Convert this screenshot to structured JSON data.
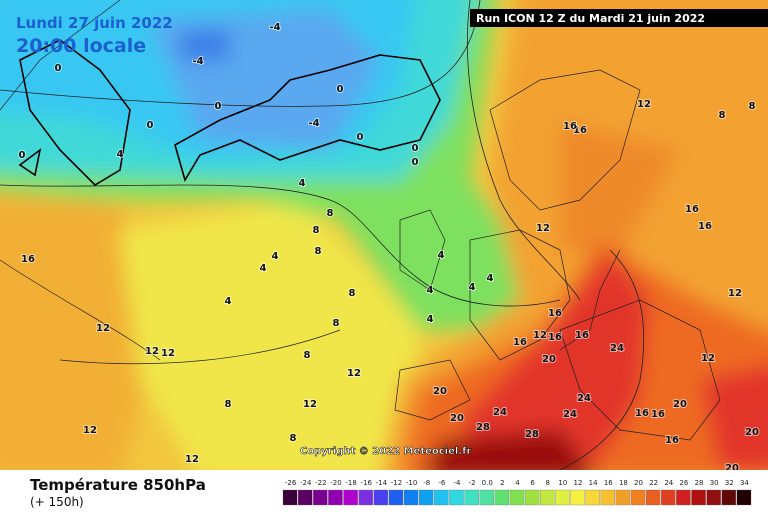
{
  "header": {
    "date": "Lundi 27 juin 2022",
    "time": "20:00 locale",
    "run": "Run ICON 12 Z du Mardi 21 juin 2022"
  },
  "copyright": "Copyright © 2022 Meteociel.fr",
  "footer": {
    "title": "Température 850hPa",
    "subtitle": "(+ 150h)"
  },
  "colorbar_labels": [
    "-26",
    "-24",
    "-22",
    "-20",
    "-18",
    "-16",
    "-14",
    "-12",
    "-10",
    "-8",
    "-6",
    "-4",
    "-2",
    "0.0",
    "2",
    "4",
    "6",
    "8",
    "10",
    "12",
    "14",
    "16",
    "18",
    "20",
    "22",
    "24",
    "26",
    "28",
    "30",
    "32",
    "34"
  ],
  "contour_labels": [
    "-4",
    "-4",
    "-4",
    "0",
    "0",
    "0",
    "0",
    "0",
    "0",
    "0",
    "0",
    "4",
    "4",
    "4",
    "4",
    "4",
    "4",
    "4",
    "4",
    "4",
    "4",
    "8",
    "8",
    "8",
    "8",
    "8",
    "8",
    "8",
    "8",
    "16",
    "12",
    "12",
    "12",
    "12",
    "12",
    "12",
    "12",
    "12",
    "16",
    "16",
    "16",
    "16",
    "12",
    "16",
    "12",
    "16",
    "16",
    "16",
    "20",
    "20",
    "20",
    "24",
    "24",
    "24",
    "24",
    "28",
    "28",
    "20",
    "12",
    "12",
    "8",
    "8",
    "16",
    "16",
    "16",
    "20",
    "20"
  ]
}
